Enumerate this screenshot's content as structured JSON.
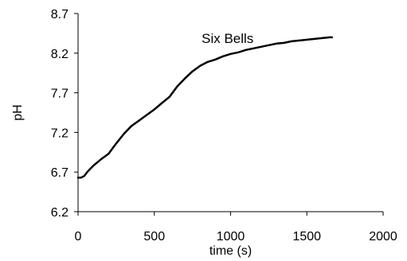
{
  "chart_data": {
    "type": "line",
    "title": "",
    "xlabel": "time (s)",
    "ylabel": "pH",
    "xlim": [
      0,
      2000
    ],
    "ylim": [
      6.2,
      8.7
    ],
    "xticks": [
      0,
      500,
      1000,
      1500,
      2000
    ],
    "yticks": [
      6.2,
      6.7,
      7.2,
      7.7,
      8.2,
      8.7
    ],
    "xtick_labels": [
      "0",
      "500",
      "1000",
      "1500",
      "2000"
    ],
    "ytick_labels": [
      "6.2",
      "6.7",
      "7.2",
      "7.7",
      "8.2",
      "8.7"
    ],
    "grid": false,
    "annotations": [
      {
        "text": "Six Bells",
        "x": 810,
        "y": 8.39
      }
    ],
    "colors": {
      "line": "#000000",
      "axis": "#000000"
    },
    "series": [
      {
        "points": [
          [
            0,
            6.63
          ],
          [
            20,
            6.63
          ],
          [
            40,
            6.65
          ],
          [
            60,
            6.7
          ],
          [
            80,
            6.74
          ],
          [
            100,
            6.78
          ],
          [
            150,
            6.86
          ],
          [
            200,
            6.93
          ],
          [
            250,
            7.06
          ],
          [
            300,
            7.18
          ],
          [
            350,
            7.28
          ],
          [
            400,
            7.35
          ],
          [
            450,
            7.42
          ],
          [
            500,
            7.49
          ],
          [
            550,
            7.57
          ],
          [
            600,
            7.65
          ],
          [
            650,
            7.78
          ],
          [
            700,
            7.88
          ],
          [
            750,
            7.97
          ],
          [
            800,
            8.04
          ],
          [
            850,
            8.09
          ],
          [
            900,
            8.12
          ],
          [
            950,
            8.16
          ],
          [
            1000,
            8.19
          ],
          [
            1050,
            8.21
          ],
          [
            1100,
            8.24
          ],
          [
            1150,
            8.26
          ],
          [
            1200,
            8.28
          ],
          [
            1250,
            8.3
          ],
          [
            1300,
            8.32
          ],
          [
            1350,
            8.33
          ],
          [
            1400,
            8.35
          ],
          [
            1450,
            8.36
          ],
          [
            1500,
            8.37
          ],
          [
            1550,
            8.38
          ],
          [
            1600,
            8.39
          ],
          [
            1650,
            8.4
          ],
          [
            1665,
            8.4
          ]
        ]
      }
    ]
  }
}
